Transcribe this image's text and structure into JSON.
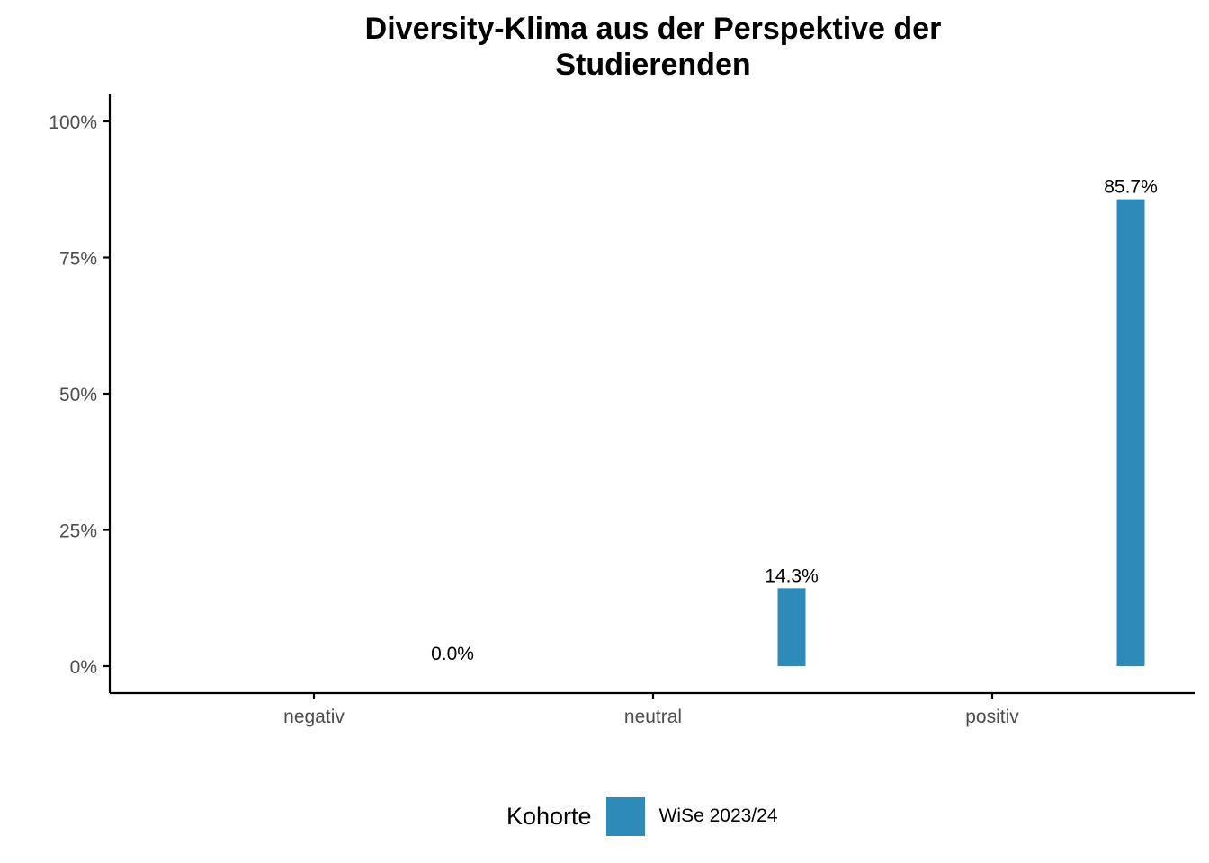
{
  "chart_data": {
    "type": "bar",
    "title_lines": [
      "Diversity-Klima aus der Perspektive der",
      "Studierenden"
    ],
    "categories": [
      "negativ",
      "neutral",
      "positiv"
    ],
    "series": [
      {
        "name": "WiSe 2023/24",
        "values": [
          0.0,
          14.3,
          85.7
        ],
        "labels": [
          "0.0%",
          "14.3%",
          "85.7%"
        ]
      }
    ],
    "xlabel": "",
    "ylabel": "",
    "ylim": [
      0,
      100
    ],
    "yticks": [
      0,
      25,
      50,
      75,
      100
    ],
    "ytick_labels": [
      "0%",
      "25%",
      "50%",
      "75%",
      "100%"
    ],
    "grid": false,
    "legend": {
      "title": "Kohorte",
      "position": "bottom"
    },
    "colors": {
      "series": "#2e8ab8",
      "axis": "#000000",
      "tick_text": "#4d4d4d"
    }
  }
}
